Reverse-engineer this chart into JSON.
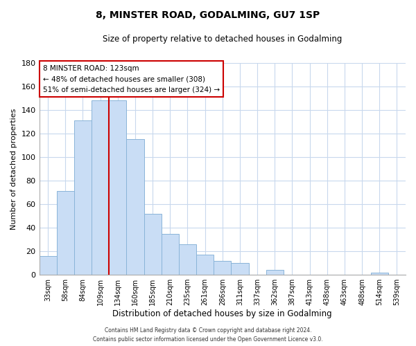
{
  "title": "8, MINSTER ROAD, GODALMING, GU7 1SP",
  "subtitle": "Size of property relative to detached houses in Godalming",
  "xlabel": "Distribution of detached houses by size in Godalming",
  "ylabel": "Number of detached properties",
  "bar_labels": [
    "33sqm",
    "58sqm",
    "84sqm",
    "109sqm",
    "134sqm",
    "160sqm",
    "185sqm",
    "210sqm",
    "235sqm",
    "261sqm",
    "286sqm",
    "311sqm",
    "337sqm",
    "362sqm",
    "387sqm",
    "413sqm",
    "438sqm",
    "463sqm",
    "488sqm",
    "514sqm",
    "539sqm"
  ],
  "bar_values": [
    16,
    71,
    131,
    148,
    148,
    115,
    52,
    35,
    26,
    17,
    12,
    10,
    0,
    4,
    0,
    0,
    0,
    0,
    0,
    2,
    0
  ],
  "bar_color": "#c9ddf5",
  "bar_edge_color": "#8ab4d8",
  "vline_x": 3.5,
  "vline_color": "#cc0000",
  "ylim": [
    0,
    180
  ],
  "yticks": [
    0,
    20,
    40,
    60,
    80,
    100,
    120,
    140,
    160,
    180
  ],
  "annotation_title": "8 MINSTER ROAD: 123sqm",
  "annotation_line1": "← 48% of detached houses are smaller (308)",
  "annotation_line2": "51% of semi-detached houses are larger (324) →",
  "annotation_box_color": "#ffffff",
  "annotation_box_edge": "#cc0000",
  "footer_line1": "Contains HM Land Registry data © Crown copyright and database right 2024.",
  "footer_line2": "Contains public sector information licensed under the Open Government Licence v3.0.",
  "background_color": "#ffffff",
  "grid_color": "#c8d8ed"
}
